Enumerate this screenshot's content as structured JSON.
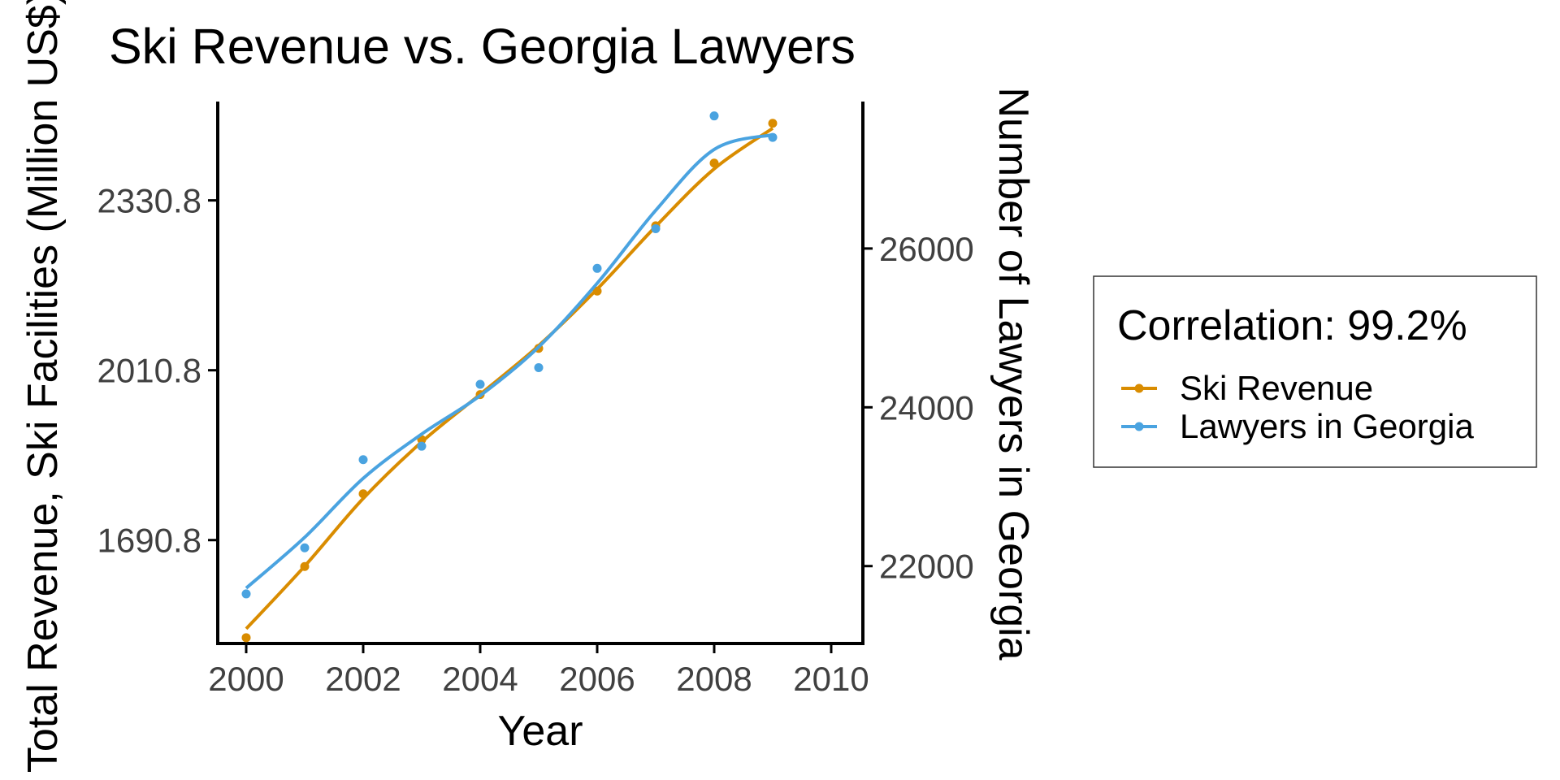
{
  "chart_data": {
    "type": "line",
    "title": "Ski Revenue vs. Georgia Lawyers",
    "xlabel": "Year",
    "ylabel_left": "Total Revenue, Ski Facilities (Million US$)",
    "ylabel_right": "Number of Lawyers in Georgia",
    "x": [
      2000,
      2001,
      2002,
      2003,
      2004,
      2005,
      2006,
      2007,
      2008,
      2009
    ],
    "x_ticks": [
      "2000",
      "2002",
      "2004",
      "2006",
      "2008",
      "2010"
    ],
    "xlim": [
      2000,
      2010
    ],
    "y_left_ticks": [
      "1690.8",
      "2010.8",
      "2330.8"
    ],
    "y_right_ticks": [
      "22000",
      "24000",
      "26000"
    ],
    "y_left_range": [
      1496,
      2517
    ],
    "y_right_range": [
      21025,
      27851
    ],
    "series": [
      {
        "name": "Ski Revenue",
        "axis": "left",
        "color": "#d98c00",
        "values": [
          1507,
          1641,
          1778,
          1880,
          1965,
          2052,
          2160,
          2283,
          2401,
          2476
        ]
      },
      {
        "name": "Lawyers in Georgia",
        "axis": "right",
        "color": "#4aa3e0",
        "values": [
          21650,
          22230,
          23340,
          23510,
          24290,
          24500,
          25750,
          26250,
          27670,
          27400
        ]
      }
    ],
    "legend": {
      "title": "Correlation: 99.2%",
      "position": "right"
    },
    "grid": false
  }
}
